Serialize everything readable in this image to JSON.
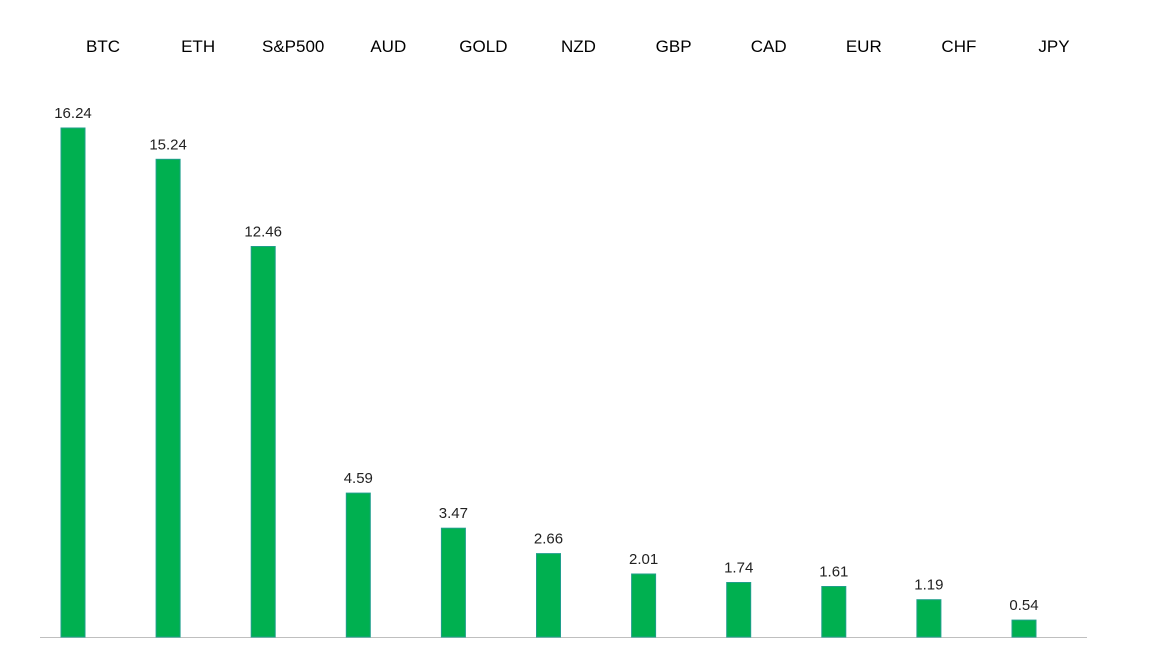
{
  "chart_data": {
    "type": "bar",
    "categories": [
      "BTC",
      "ETH",
      "S&P500",
      "AUD",
      "GOLD",
      "NZD",
      "GBP",
      "CAD",
      "EUR",
      "CHF",
      "JPY"
    ],
    "values": [
      16.24,
      15.24,
      12.46,
      4.59,
      3.47,
      2.66,
      2.01,
      1.74,
      1.61,
      1.19,
      0.54
    ],
    "data_labels": [
      "16.24",
      "15.24",
      "12.46",
      "4.59",
      "3.47",
      "2.66",
      "2.01",
      "1.74",
      "1.61",
      "1.19",
      "0.54"
    ],
    "category_labels_position": "top",
    "ylim": [
      0,
      16.24
    ],
    "grid": false,
    "legend": "none",
    "bar_color": "#00b050",
    "bar_edge_color": "#1f9f8a",
    "axis_color": "#bfbfbf"
  }
}
